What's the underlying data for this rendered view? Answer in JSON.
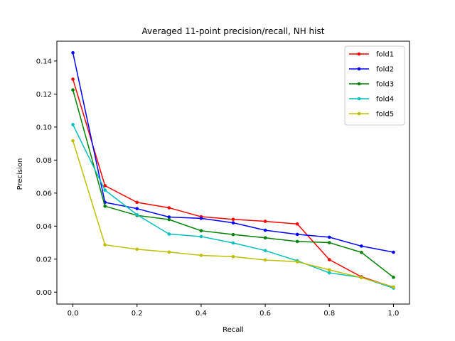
{
  "chart_data": {
    "type": "line",
    "title": "Averaged 11-point precision/recall, NH hist",
    "xlabel": "Recall",
    "ylabel": "Precision",
    "xlim": [
      -0.05,
      1.05
    ],
    "ylim": [
      -0.0072,
      0.152
    ],
    "x": [
      0.0,
      0.1,
      0.2,
      0.3,
      0.4,
      0.5,
      0.6,
      0.7,
      0.8,
      0.9,
      1.0
    ],
    "xticks": [
      "0.0",
      "0.2",
      "0.4",
      "0.6",
      "0.8",
      "1.0"
    ],
    "yticks": [
      "0.00",
      "0.02",
      "0.04",
      "0.06",
      "0.08",
      "0.10",
      "0.12",
      "0.14"
    ],
    "grid": false,
    "legend_position": "top-right",
    "series": [
      {
        "name": "fold1",
        "color": "#ff0000",
        "values": [
          0.129,
          0.0645,
          0.0544,
          0.0511,
          0.0457,
          0.0441,
          0.0429,
          0.0413,
          0.0197,
          0.0093,
          0.003
        ]
      },
      {
        "name": "fold2",
        "color": "#0000ff",
        "values": [
          0.145,
          0.0544,
          0.0506,
          0.0455,
          0.0447,
          0.042,
          0.0375,
          0.035,
          0.0333,
          0.0279,
          0.0242
        ]
      },
      {
        "name": "fold3",
        "color": "#008000",
        "values": [
          0.1225,
          0.0521,
          0.0465,
          0.044,
          0.0372,
          0.0349,
          0.0329,
          0.0307,
          0.03,
          0.0241,
          0.009
        ]
      },
      {
        "name": "fold4",
        "color": "#00bfbf",
        "values": [
          0.1015,
          0.0618,
          0.0469,
          0.0352,
          0.0337,
          0.0298,
          0.0252,
          0.019,
          0.0117,
          0.0089,
          0.0025
        ]
      },
      {
        "name": "fold5",
        "color": "#bfbf00",
        "values": [
          0.0917,
          0.0287,
          0.026,
          0.0243,
          0.0223,
          0.0215,
          0.0195,
          0.0184,
          0.0135,
          0.0088,
          0.0032
        ]
      }
    ]
  }
}
